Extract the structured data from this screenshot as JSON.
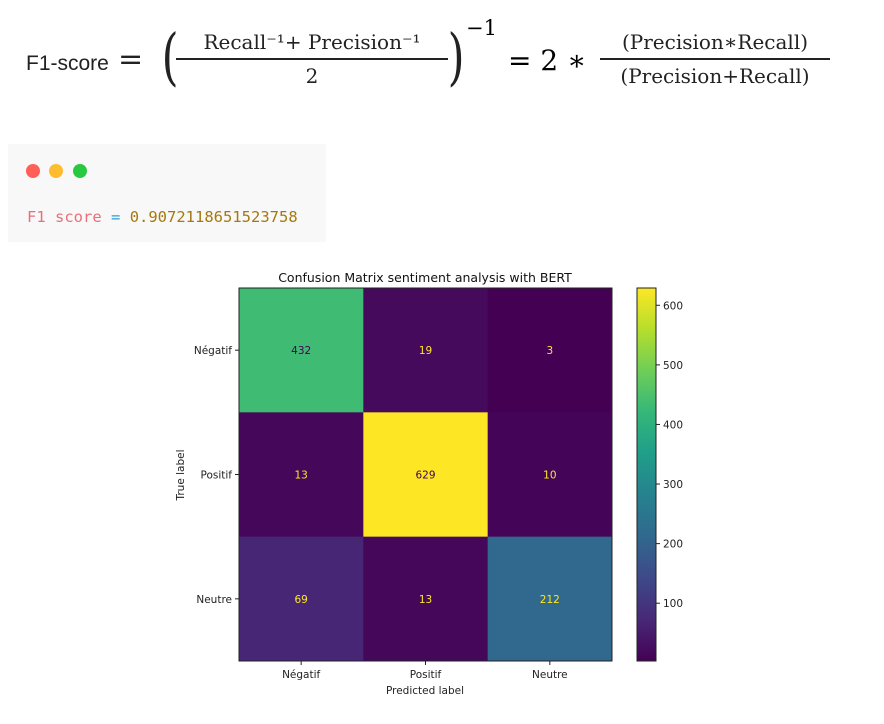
{
  "formula": {
    "label": "F1-score",
    "equals": "=",
    "left_numerator": "Recall⁻¹+ Precision⁻¹",
    "left_denominator": "2",
    "exponent": "−1",
    "right_prefix": "= 2 ∗",
    "right_numerator": "(Precision∗Recall)",
    "right_denominator": "(Precision+Recall)"
  },
  "code_window": {
    "dot_colors": [
      "#ff5f57",
      "#febc2e",
      "#28c840"
    ],
    "variable": "F1 score",
    "operator": "=",
    "value": "0.9072118651523758",
    "colors": {
      "variable": "#e8707a",
      "operator": "#2a9fd6",
      "value": "#a6780e"
    }
  },
  "chart_data": {
    "type": "heatmap",
    "title": "Confusion Matrix sentiment analysis with BERT",
    "xlabel": "Predicted label",
    "ylabel": "True label",
    "x_categories": [
      "Négatif",
      "Positif",
      "Neutre"
    ],
    "y_categories": [
      "Négatif",
      "Positif",
      "Neutre"
    ],
    "values": [
      [
        432,
        19,
        3
      ],
      [
        13,
        629,
        10
      ],
      [
        69,
        13,
        212
      ]
    ],
    "colormap": "viridis",
    "colorbar": {
      "range": [
        3,
        629
      ],
      "ticks": [
        100,
        200,
        300,
        400,
        500,
        600
      ]
    }
  }
}
